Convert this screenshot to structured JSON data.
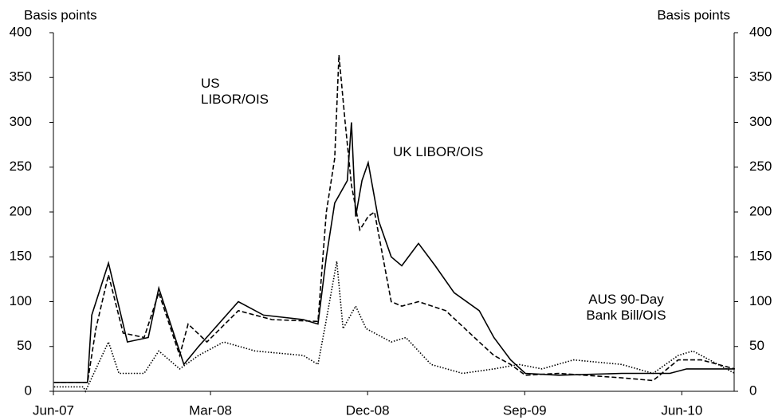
{
  "chart_data": {
    "type": "line",
    "y_label": "Basis points",
    "y2_label": "Basis points",
    "xlim": [
      2007.417,
      2010.667
    ],
    "xticks": [
      {
        "value": 2007.417,
        "label": "Jun-07"
      },
      {
        "value": 2008.167,
        "label": "Mar-08"
      },
      {
        "value": 2008.917,
        "label": "Dec-08"
      },
      {
        "value": 2009.667,
        "label": "Sep-09"
      },
      {
        "value": 2010.417,
        "label": "Jun-10"
      }
    ],
    "ylim": [
      0,
      400
    ],
    "yticks": [
      0,
      50,
      100,
      150,
      200,
      250,
      300,
      350,
      400
    ],
    "y2lim": [
      0,
      400
    ],
    "y2ticks": [
      0,
      50,
      100,
      150,
      200,
      250,
      300,
      350,
      400
    ],
    "series": [
      {
        "name": "UK LIBOR/OIS",
        "color": "#000000",
        "style": "solid",
        "x": [
          2007.42,
          2007.58,
          2007.6,
          2007.68,
          2007.77,
          2007.87,
          2007.92,
          2008.04,
          2008.11,
          2008.3,
          2008.42,
          2008.61,
          2008.68,
          2008.72,
          2008.76,
          2008.82,
          2008.84,
          2008.86,
          2008.89,
          2008.92,
          2008.97,
          2009.03,
          2009.08,
          2009.16,
          2009.24,
          2009.33,
          2009.45,
          2009.52,
          2009.6,
          2009.67,
          2009.83,
          2010.13,
          2010.36,
          2010.44,
          2010.67
        ],
        "values": [
          10,
          10,
          85,
          143,
          55,
          60,
          115,
          30,
          50,
          100,
          85,
          80,
          75,
          150,
          210,
          235,
          300,
          195,
          235,
          255,
          190,
          150,
          140,
          165,
          140,
          110,
          90,
          60,
          35,
          20,
          18,
          20,
          20,
          25,
          25
        ]
      },
      {
        "name": "US LIBOR/OIS",
        "color": "#000000",
        "style": "dashed",
        "x": [
          2007.42,
          2007.58,
          2007.62,
          2007.68,
          2007.75,
          2007.85,
          2007.92,
          2008.02,
          2008.06,
          2008.15,
          2008.3,
          2008.46,
          2008.68,
          2008.72,
          2008.76,
          2008.78,
          2008.81,
          2008.84,
          2008.88,
          2008.92,
          2008.95,
          2009.03,
          2009.08,
          2009.16,
          2009.29,
          2009.45,
          2009.52,
          2009.6,
          2009.67,
          2009.83,
          2010.13,
          2010.28,
          2010.4,
          2010.51,
          2010.67
        ],
        "values": [
          10,
          10,
          70,
          130,
          65,
          60,
          110,
          40,
          75,
          55,
          90,
          80,
          78,
          200,
          260,
          375,
          300,
          230,
          180,
          195,
          200,
          100,
          95,
          100,
          90,
          55,
          40,
          30,
          18,
          20,
          15,
          12,
          35,
          35,
          25
        ]
      },
      {
        "name": "AUS 90-Day Bank Bill/OIS",
        "color": "#000000",
        "style": "dotted",
        "x": [
          2007.42,
          2007.56,
          2007.57,
          2007.62,
          2007.68,
          2007.73,
          2007.85,
          2007.92,
          2008.02,
          2008.11,
          2008.23,
          2008.38,
          2008.61,
          2008.68,
          2008.72,
          2008.77,
          2008.8,
          2008.86,
          2008.91,
          2009.03,
          2009.1,
          2009.22,
          2009.37,
          2009.52,
          2009.64,
          2009.75,
          2009.9,
          2010.13,
          2010.28,
          2010.4,
          2010.47,
          2010.59,
          2010.67
        ],
        "values": [
          5,
          5,
          0,
          25,
          55,
          20,
          20,
          45,
          25,
          40,
          55,
          45,
          40,
          30,
          80,
          145,
          70,
          95,
          70,
          55,
          60,
          30,
          20,
          25,
          30,
          25,
          35,
          30,
          20,
          40,
          45,
          30,
          20
        ]
      }
    ]
  }
}
